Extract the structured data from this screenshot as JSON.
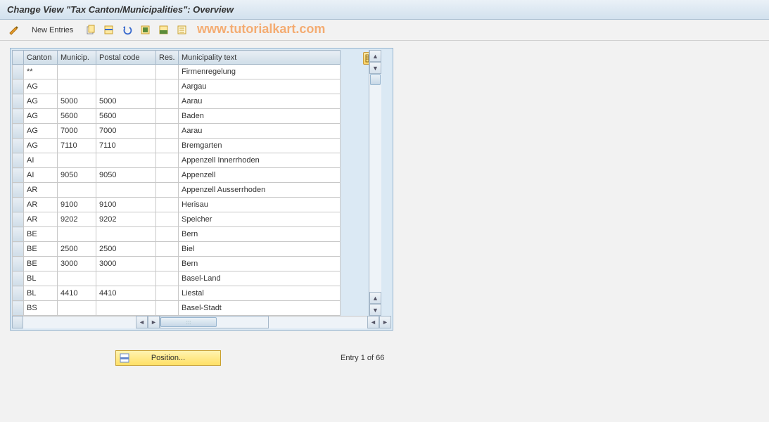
{
  "colors": {
    "title_gradient_top": "#eaf1f7",
    "title_gradient_bottom": "#d2e1ee",
    "border": "#97b5cf",
    "header_cell_top": "#e8eef4",
    "header_cell_bottom": "#cfdde8",
    "watermark": "#f5a05c",
    "button_top": "#fff3b0",
    "button_bottom": "#ffe066"
  },
  "header": {
    "title": "Change View \"Tax Canton/Municipalities\": Overview"
  },
  "toolbar": {
    "new_entries_label": "New Entries",
    "icons": [
      "toggle-icon",
      "copy-icon",
      "save-icon",
      "undo-icon",
      "select-all-icon",
      "select-block-icon",
      "deselect-icon"
    ]
  },
  "watermark": "www.tutorialkart.com",
  "table": {
    "columns": {
      "canton": "Canton",
      "municip": "Municip.",
      "postal": "Postal code",
      "res": "Res.",
      "text": "Municipality text"
    },
    "rows": [
      {
        "canton": "**",
        "municip": "",
        "postal": "",
        "res": "",
        "text": "Firmenregelung"
      },
      {
        "canton": "AG",
        "municip": "",
        "postal": "",
        "res": "",
        "text": "Aargau"
      },
      {
        "canton": "AG",
        "municip": "5000",
        "postal": "5000",
        "res": "",
        "text": "Aarau"
      },
      {
        "canton": "AG",
        "municip": "5600",
        "postal": "5600",
        "res": "",
        "text": "Baden"
      },
      {
        "canton": "AG",
        "municip": "7000",
        "postal": "7000",
        "res": "",
        "text": "Aarau"
      },
      {
        "canton": "AG",
        "municip": "7110",
        "postal": "7110",
        "res": "",
        "text": "Bremgarten"
      },
      {
        "canton": "AI",
        "municip": "",
        "postal": "",
        "res": "",
        "text": "Appenzell Innerrhoden"
      },
      {
        "canton": "AI",
        "municip": "9050",
        "postal": "9050",
        "res": "",
        "text": "Appenzell"
      },
      {
        "canton": "AR",
        "municip": "",
        "postal": "",
        "res": "",
        "text": "Appenzell Ausserrhoden"
      },
      {
        "canton": "AR",
        "municip": "9100",
        "postal": "9100",
        "res": "",
        "text": "Herisau"
      },
      {
        "canton": "AR",
        "municip": "9202",
        "postal": "9202",
        "res": "",
        "text": "Speicher"
      },
      {
        "canton": "BE",
        "municip": "",
        "postal": "",
        "res": "",
        "text": "Bern"
      },
      {
        "canton": "BE",
        "municip": "2500",
        "postal": "2500",
        "res": "",
        "text": "Biel"
      },
      {
        "canton": "BE",
        "municip": "3000",
        "postal": "3000",
        "res": "",
        "text": "Bern"
      },
      {
        "canton": "BL",
        "municip": "",
        "postal": "",
        "res": "",
        "text": "Basel-Land"
      },
      {
        "canton": "BL",
        "municip": "4410",
        "postal": "4410",
        "res": "",
        "text": "Liestal"
      },
      {
        "canton": "BS",
        "municip": "",
        "postal": "",
        "res": "",
        "text": "Basel-Stadt"
      }
    ]
  },
  "footer": {
    "position_label": "Position...",
    "entry_status": "Entry 1 of 66"
  }
}
